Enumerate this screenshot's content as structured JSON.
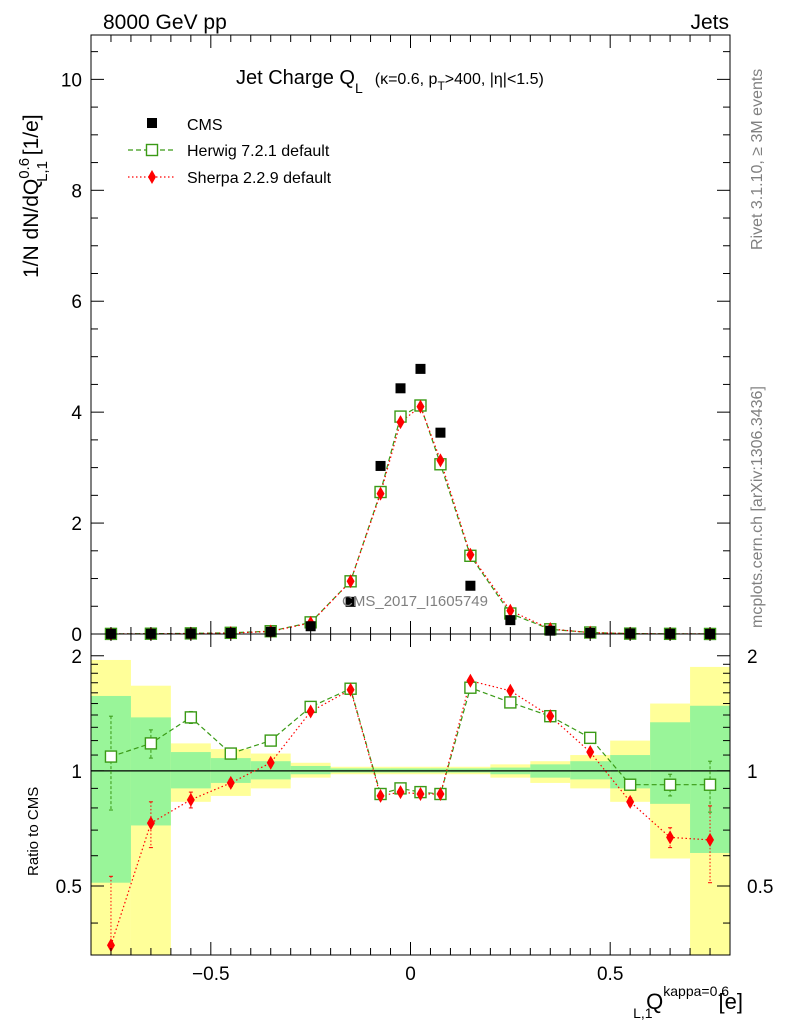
{
  "header": {
    "left": "8000 GeV pp",
    "right": "Jets"
  },
  "side_labels": {
    "rivet": "Rivet 3.1.10, ≥ 3M events",
    "mcplots": "mcplots.cern.ch [arXiv:1306.3436]"
  },
  "watermark": "CMS_2017_I1605749",
  "colors": {
    "cms": "#000000",
    "herwig": "#3a9a16",
    "sherpa": "#ff0000",
    "band_green": "#99f599",
    "band_yellow": "#ffff99"
  },
  "chart_data": [
    {
      "type": "scatter",
      "panel": "main",
      "title": "Jet Charge Q_L (κ=0.6, p_T>400, |η|<1.5)",
      "title_parts": {
        "main": "Jet Charge Q",
        "sub": "L",
        "cut_pre": "(κ=0.6, p",
        "cut_sub": "T",
        "cut_post": ">400, |η|<1.5)"
      },
      "ylabel": "1/N dN/dQ_{L,1}^{0.6} [1/e]",
      "ylabel_parts": {
        "pre": "1/N dN/dQ",
        "sup": "0.6",
        "sub": "L,1",
        "post": " [1/e]"
      },
      "xlim": [
        -0.8,
        0.8
      ],
      "ylim": [
        0,
        10.8
      ],
      "y_ticks": [
        "0",
        "2",
        "4",
        "6",
        "8",
        "10"
      ],
      "x": [
        -0.75,
        -0.65,
        -0.55,
        -0.45,
        -0.35,
        -0.25,
        -0.15,
        -0.075,
        -0.025,
        0.025,
        0.075,
        0.15,
        0.25,
        0.35,
        0.45,
        0.55,
        0.65,
        0.75
      ],
      "series": [
        {
          "name": "CMS",
          "values": [
            0.002,
            0.004,
            0.008,
            0.018,
            0.04,
            0.14,
            0.58,
            3.03,
            4.43,
            4.78,
            3.63,
            0.87,
            0.25,
            0.06,
            0.02,
            0.008,
            0.003,
            0.001
          ]
        },
        {
          "name": "Herwig 7.2.1 default",
          "values": [
            0.002,
            0.005,
            0.011,
            0.021,
            0.05,
            0.21,
            0.95,
            2.56,
            3.92,
            4.12,
            3.06,
            1.41,
            0.37,
            0.085,
            0.027,
            0.007,
            0.003,
            0.001
          ]
        },
        {
          "name": "Sherpa 2.2.9 default",
          "values": [
            0.001,
            0.003,
            0.007,
            0.017,
            0.045,
            0.2,
            0.95,
            2.53,
            3.82,
            4.1,
            3.13,
            1.43,
            0.42,
            0.09,
            0.025,
            0.007,
            0.002,
            0.001
          ]
        }
      ]
    },
    {
      "type": "scatter",
      "panel": "ratio",
      "ylabel": "Ratio to CMS",
      "xlabel": "Q_{L,1}^{kappa=0.6} [e]",
      "xlabel_parts": {
        "main": "Q",
        "sub": "L,1",
        "sup": "kappa=0.6",
        "unit": "[e]"
      },
      "xlim": [
        -0.8,
        0.8
      ],
      "ylim": [
        0.33,
        2.28
      ],
      "log_y": true,
      "x_ticks": [
        "−0.5",
        "0",
        "0.5"
      ],
      "y_ticks": [
        "0.5",
        "1",
        "2"
      ],
      "bin_edges": [
        -0.8,
        -0.7,
        -0.6,
        -0.5,
        -0.4,
        -0.3,
        -0.2,
        -0.1,
        -0.05,
        0.0,
        0.05,
        0.1,
        0.2,
        0.3,
        0.4,
        0.5,
        0.6,
        0.7,
        0.8
      ],
      "bands": {
        "green_low": [
          0.51,
          0.72,
          0.9,
          0.93,
          0.95,
          0.98,
          0.99,
          0.99,
          0.99,
          0.99,
          0.99,
          0.99,
          0.98,
          0.96,
          0.95,
          0.9,
          0.82,
          0.61
        ],
        "green_high": [
          1.57,
          1.38,
          1.12,
          1.08,
          1.06,
          1.03,
          1.015,
          1.015,
          1.015,
          1.015,
          1.015,
          1.015,
          1.02,
          1.04,
          1.06,
          1.1,
          1.34,
          1.48
        ],
        "yellow_low": [
          0.33,
          0.33,
          0.83,
          0.86,
          0.9,
          0.96,
          0.98,
          0.98,
          0.98,
          0.98,
          0.98,
          0.98,
          0.96,
          0.93,
          0.9,
          0.83,
          0.59,
          0.33
        ],
        "yellow_high": [
          1.95,
          1.67,
          1.18,
          1.14,
          1.11,
          1.05,
          1.025,
          1.025,
          1.025,
          1.025,
          1.025,
          1.025,
          1.04,
          1.06,
          1.1,
          1.2,
          1.5,
          1.87
        ]
      },
      "x": [
        -0.75,
        -0.65,
        -0.55,
        -0.45,
        -0.35,
        -0.25,
        -0.15,
        -0.075,
        -0.025,
        0.025,
        0.075,
        0.15,
        0.25,
        0.35,
        0.45,
        0.55,
        0.65,
        0.75
      ],
      "series": [
        {
          "name": "Herwig 7.2.1 default",
          "values": [
            1.09,
            1.18,
            1.38,
            1.11,
            1.2,
            1.47,
            1.64,
            0.87,
            0.9,
            0.88,
            0.87,
            1.65,
            1.51,
            1.39,
            1.22,
            0.92,
            0.92,
            0.92
          ],
          "err": [
            0.3,
            0.1,
            0.05,
            0.02,
            0.02,
            0.02,
            0.02,
            0.01,
            0.01,
            0.01,
            0.01,
            0.02,
            0.02,
            0.02,
            0.02,
            0.02,
            0.06,
            0.14
          ]
        },
        {
          "name": "Sherpa 2.2.9 default",
          "values": [
            0.35,
            0.73,
            0.84,
            0.93,
            1.05,
            1.43,
            1.63,
            0.86,
            0.88,
            0.87,
            0.87,
            1.72,
            1.62,
            1.39,
            1.12,
            0.83,
            0.67,
            0.66
          ],
          "err": [
            0.18,
            0.1,
            0.04,
            0.02,
            0.02,
            0.02,
            0.02,
            0.01,
            0.01,
            0.01,
            0.01,
            0.02,
            0.02,
            0.02,
            0.02,
            0.02,
            0.04,
            0.15
          ]
        }
      ]
    }
  ]
}
